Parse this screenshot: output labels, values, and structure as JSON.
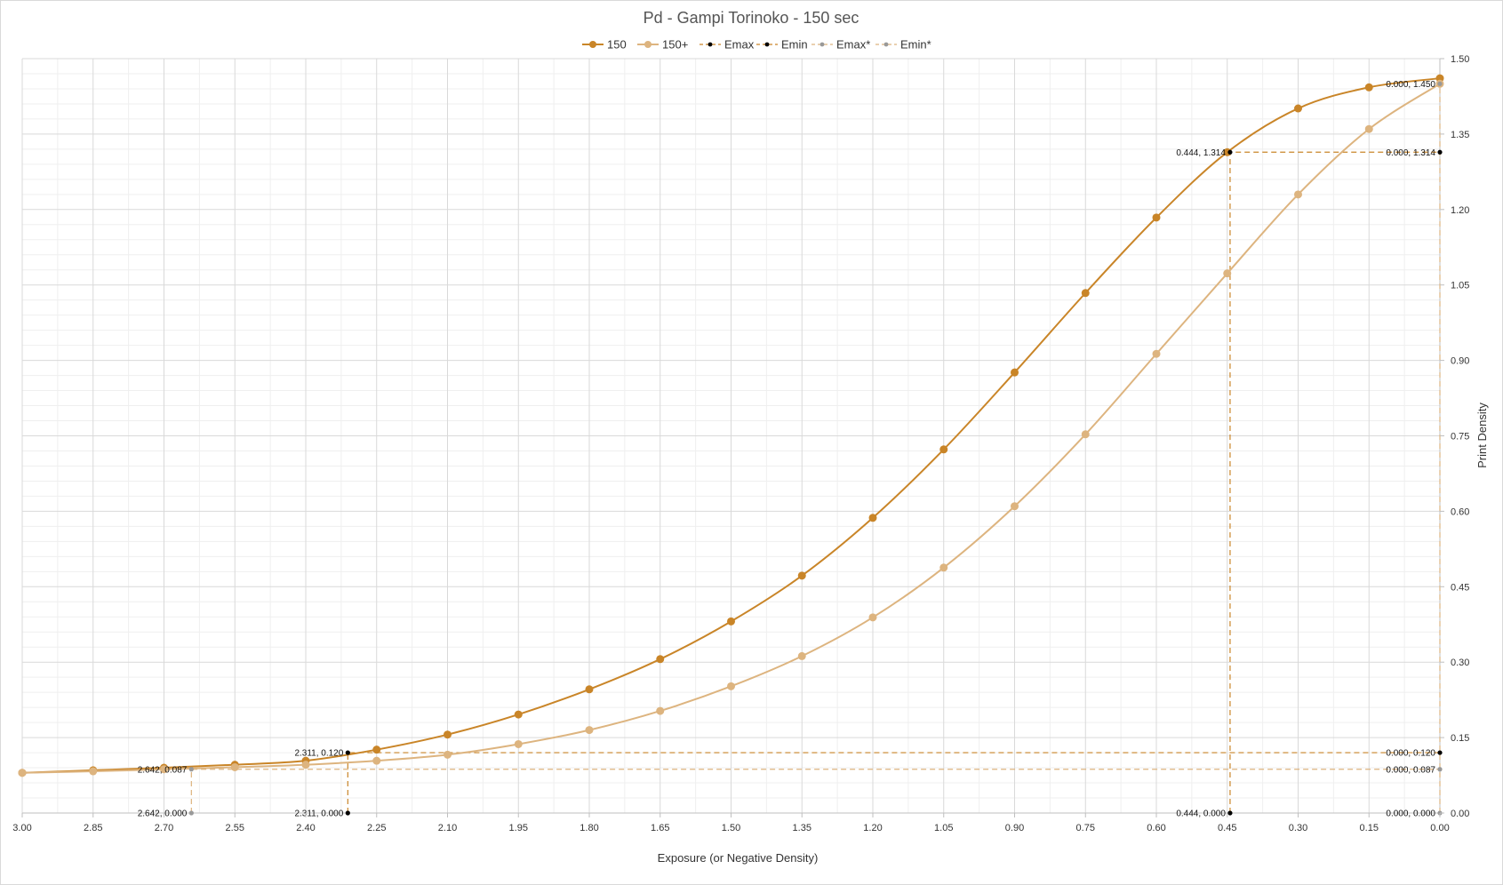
{
  "chart_data": {
    "type": "line",
    "title": "Pd - Gampi Torinoko - 150 sec",
    "xlabel": "Exposure (or Negative Density)",
    "ylabel": "Print Density",
    "xlim": [
      3.0,
      0.0
    ],
    "ylim": [
      0.0,
      1.5
    ],
    "x_reversed": true,
    "y_axis_side": "right",
    "legend_position": "top",
    "grid": true,
    "x_ticks": [
      "3.00",
      "2.85",
      "2.70",
      "2.55",
      "2.40",
      "2.25",
      "2.10",
      "1.95",
      "1.80",
      "1.65",
      "1.50",
      "1.35",
      "1.20",
      "1.05",
      "0.90",
      "0.75",
      "0.60",
      "0.45",
      "0.30",
      "0.15",
      "0.00"
    ],
    "y_ticks": [
      "0.00",
      "0.15",
      "0.30",
      "0.45",
      "0.60",
      "0.75",
      "0.90",
      "1.05",
      "1.20",
      "1.35",
      "1.50"
    ],
    "series": [
      {
        "name": "150",
        "color": "#c98528",
        "style": "solid",
        "marker": "large",
        "points": [
          [
            3.0,
            0.08
          ],
          [
            2.85,
            0.085
          ],
          [
            2.7,
            0.09
          ],
          [
            2.55,
            0.096
          ],
          [
            2.4,
            0.104
          ],
          [
            2.25,
            0.126
          ],
          [
            2.1,
            0.156
          ],
          [
            1.95,
            0.196
          ],
          [
            1.8,
            0.246
          ],
          [
            1.65,
            0.306
          ],
          [
            1.5,
            0.381
          ],
          [
            1.35,
            0.472
          ],
          [
            1.2,
            0.587
          ],
          [
            1.05,
            0.723
          ],
          [
            0.9,
            0.876
          ],
          [
            0.75,
            1.034
          ],
          [
            0.6,
            1.184
          ],
          [
            0.45,
            1.314
          ],
          [
            0.3,
            1.401
          ],
          [
            0.15,
            1.443
          ],
          [
            0.0,
            1.461
          ]
        ]
      },
      {
        "name": "150+",
        "color": "#ddb47f",
        "style": "solid",
        "marker": "large",
        "points": [
          [
            3.0,
            0.08
          ],
          [
            2.85,
            0.083
          ],
          [
            2.7,
            0.087
          ],
          [
            2.55,
            0.091
          ],
          [
            2.4,
            0.096
          ],
          [
            2.25,
            0.104
          ],
          [
            2.1,
            0.116
          ],
          [
            1.95,
            0.137
          ],
          [
            1.8,
            0.165
          ],
          [
            1.65,
            0.203
          ],
          [
            1.5,
            0.252
          ],
          [
            1.35,
            0.312
          ],
          [
            1.2,
            0.389
          ],
          [
            1.05,
            0.488
          ],
          [
            0.9,
            0.61
          ],
          [
            0.75,
            0.753
          ],
          [
            0.6,
            0.913
          ],
          [
            0.45,
            1.073
          ],
          [
            0.3,
            1.23
          ],
          [
            0.15,
            1.36
          ],
          [
            0.0,
            1.45
          ]
        ]
      },
      {
        "name": "Emax",
        "color": "#c98528",
        "marker_color": "#000000",
        "style": "dashed",
        "marker": "small",
        "points": [
          [
            0.444,
            0.0
          ],
          [
            0.444,
            1.314
          ],
          [
            0.0,
            1.314
          ]
        ],
        "labels": [
          "0.444, 0.000",
          "0.444, 1.314",
          "0.000, 1.314"
        ]
      },
      {
        "name": "Emin",
        "color": "#c98528",
        "marker_color": "#000000",
        "style": "dashed",
        "marker": "small",
        "points": [
          [
            2.311,
            0.0
          ],
          [
            2.311,
            0.12
          ],
          [
            0.0,
            0.12
          ]
        ],
        "labels": [
          "2.311, 0.000",
          "2.311, 0.120",
          "0.000, 0.120"
        ]
      },
      {
        "name": "Emax*",
        "color": "#ddb47f",
        "marker_color": "#999999",
        "style": "dashed",
        "marker": "small",
        "points": [
          [
            0.0,
            0.0
          ],
          [
            0.0,
            1.45
          ]
        ],
        "labels": [
          "0.000, 0.000",
          "0.000, 1.450"
        ]
      },
      {
        "name": "Emin*",
        "color": "#ddb47f",
        "marker_color": "#999999",
        "style": "dashed",
        "marker": "small",
        "points": [
          [
            2.642,
            0.0
          ],
          [
            2.642,
            0.087
          ],
          [
            0.0,
            0.087
          ]
        ],
        "labels": [
          "2.642, 0.000",
          "2.642, 0.087",
          "0.000, 0.087"
        ]
      }
    ]
  }
}
